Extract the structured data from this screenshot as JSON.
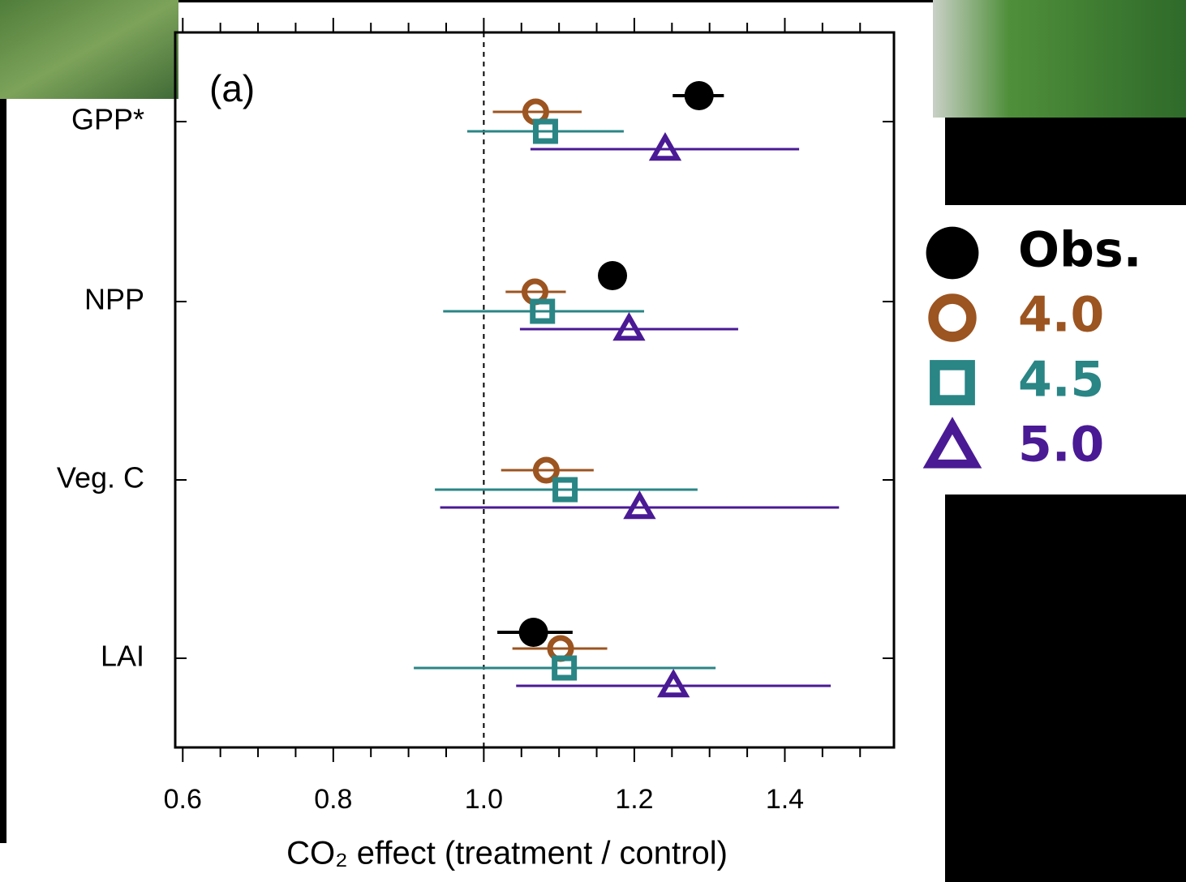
{
  "chart_data": {
    "type": "forest",
    "panel_label": "(a)",
    "x_label": "CO₂ effect (treatment / control)",
    "categories": [
      "GPP*",
      "NPP",
      "Veg. C",
      "LAI"
    ],
    "series": [
      {
        "name": "Obs.",
        "color": "#000000",
        "marker": "filled-circle",
        "values": [
          1.286,
          1.171,
          null,
          1.066
        ],
        "lower": [
          1.251,
          null,
          null,
          1.018
        ],
        "upper": [
          1.319,
          null,
          null,
          1.118
        ]
      },
      {
        "name": "4.0",
        "color": "#9c5420",
        "marker": "circle",
        "values": [
          1.069,
          1.068,
          1.083,
          1.102
        ],
        "lower": [
          1.012,
          1.029,
          1.023,
          1.038
        ],
        "upper": [
          1.13,
          1.109,
          1.146,
          1.164
        ]
      },
      {
        "name": "4.5",
        "color": "#2a8585",
        "marker": "square",
        "values": [
          1.082,
          1.078,
          1.108,
          1.107
        ],
        "lower": [
          0.978,
          0.946,
          0.935,
          0.907
        ],
        "upper": [
          1.186,
          1.213,
          1.284,
          1.308
        ]
      },
      {
        "name": "5.0",
        "color": "#4a1a95",
        "marker": "triangle",
        "values": [
          1.241,
          1.193,
          1.207,
          1.252
        ],
        "lower": [
          1.062,
          1.048,
          0.942,
          1.043
        ],
        "upper": [
          1.419,
          1.338,
          1.472,
          1.461
        ]
      }
    ],
    "xlim": [
      0.59,
      1.545
    ],
    "xticks": [
      {
        "value": 0.6,
        "label": "0.6"
      },
      {
        "value": 0.8,
        "label": "0.8"
      },
      {
        "value": 1.0,
        "label": "1.0"
      },
      {
        "value": 1.2,
        "label": "1.2"
      },
      {
        "value": 1.4,
        "label": "1.4"
      }
    ],
    "xminor_ticks": [
      0.65,
      0.7,
      0.75,
      0.85,
      0.9,
      0.95,
      1.05,
      1.1,
      1.15,
      1.25,
      1.3,
      1.35,
      1.45,
      1.5
    ],
    "reference_line": 1.0,
    "legend": "right"
  }
}
